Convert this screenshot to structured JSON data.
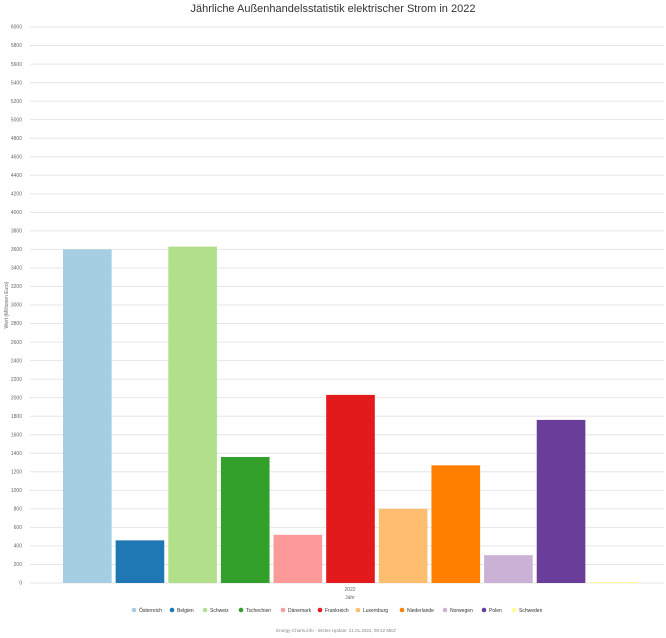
{
  "chart_data": {
    "type": "bar",
    "title": "Jährliche Außenhandelsstatistik elektrischer Strom in 2022",
    "ylabel": "Wert (Millionen Euro)",
    "xlabel": "Jahr",
    "categories": [
      "2022"
    ],
    "ylim": [
      0,
      6000
    ],
    "yticks": [
      0,
      200,
      400,
      600,
      800,
      1000,
      1200,
      1400,
      1600,
      1800,
      2000,
      2200,
      2400,
      2600,
      2800,
      3000,
      3200,
      3400,
      3600,
      3800,
      4000,
      4200,
      4400,
      4600,
      4800,
      5000,
      5200,
      5400,
      5600,
      5800,
      6000
    ],
    "grid": true,
    "legend_position": "bottom",
    "series": [
      {
        "name": "Österreich",
        "color": "#a6cee3",
        "values": [
          3600
        ]
      },
      {
        "name": "Belgien",
        "color": "#1f78b4",
        "values": [
          460
        ]
      },
      {
        "name": "Schweiz",
        "color": "#b2df8a",
        "values": [
          3630
        ]
      },
      {
        "name": "Tschechien",
        "color": "#33a02c",
        "values": [
          1360
        ]
      },
      {
        "name": "Dänemark",
        "color": "#fb9a99",
        "values": [
          520
        ]
      },
      {
        "name": "Frankreich",
        "color": "#e31a1c",
        "values": [
          2030
        ]
      },
      {
        "name": "Luxemburg",
        "color": "#fdbf6f",
        "values": [
          800
        ]
      },
      {
        "name": "Niederlande",
        "color": "#ff7f00",
        "values": [
          1270
        ]
      },
      {
        "name": "Norwegen",
        "color": "#cab2d6",
        "values": [
          300
        ]
      },
      {
        "name": "Polen",
        "color": "#6a3d9a",
        "values": [
          1760
        ]
      },
      {
        "name": "Schweden",
        "color": "#ffff99",
        "values": [
          10
        ]
      }
    ]
  },
  "credits": "Energy-Charts.info - letztes Update: 21.01.2022, 08:42 MEZ"
}
